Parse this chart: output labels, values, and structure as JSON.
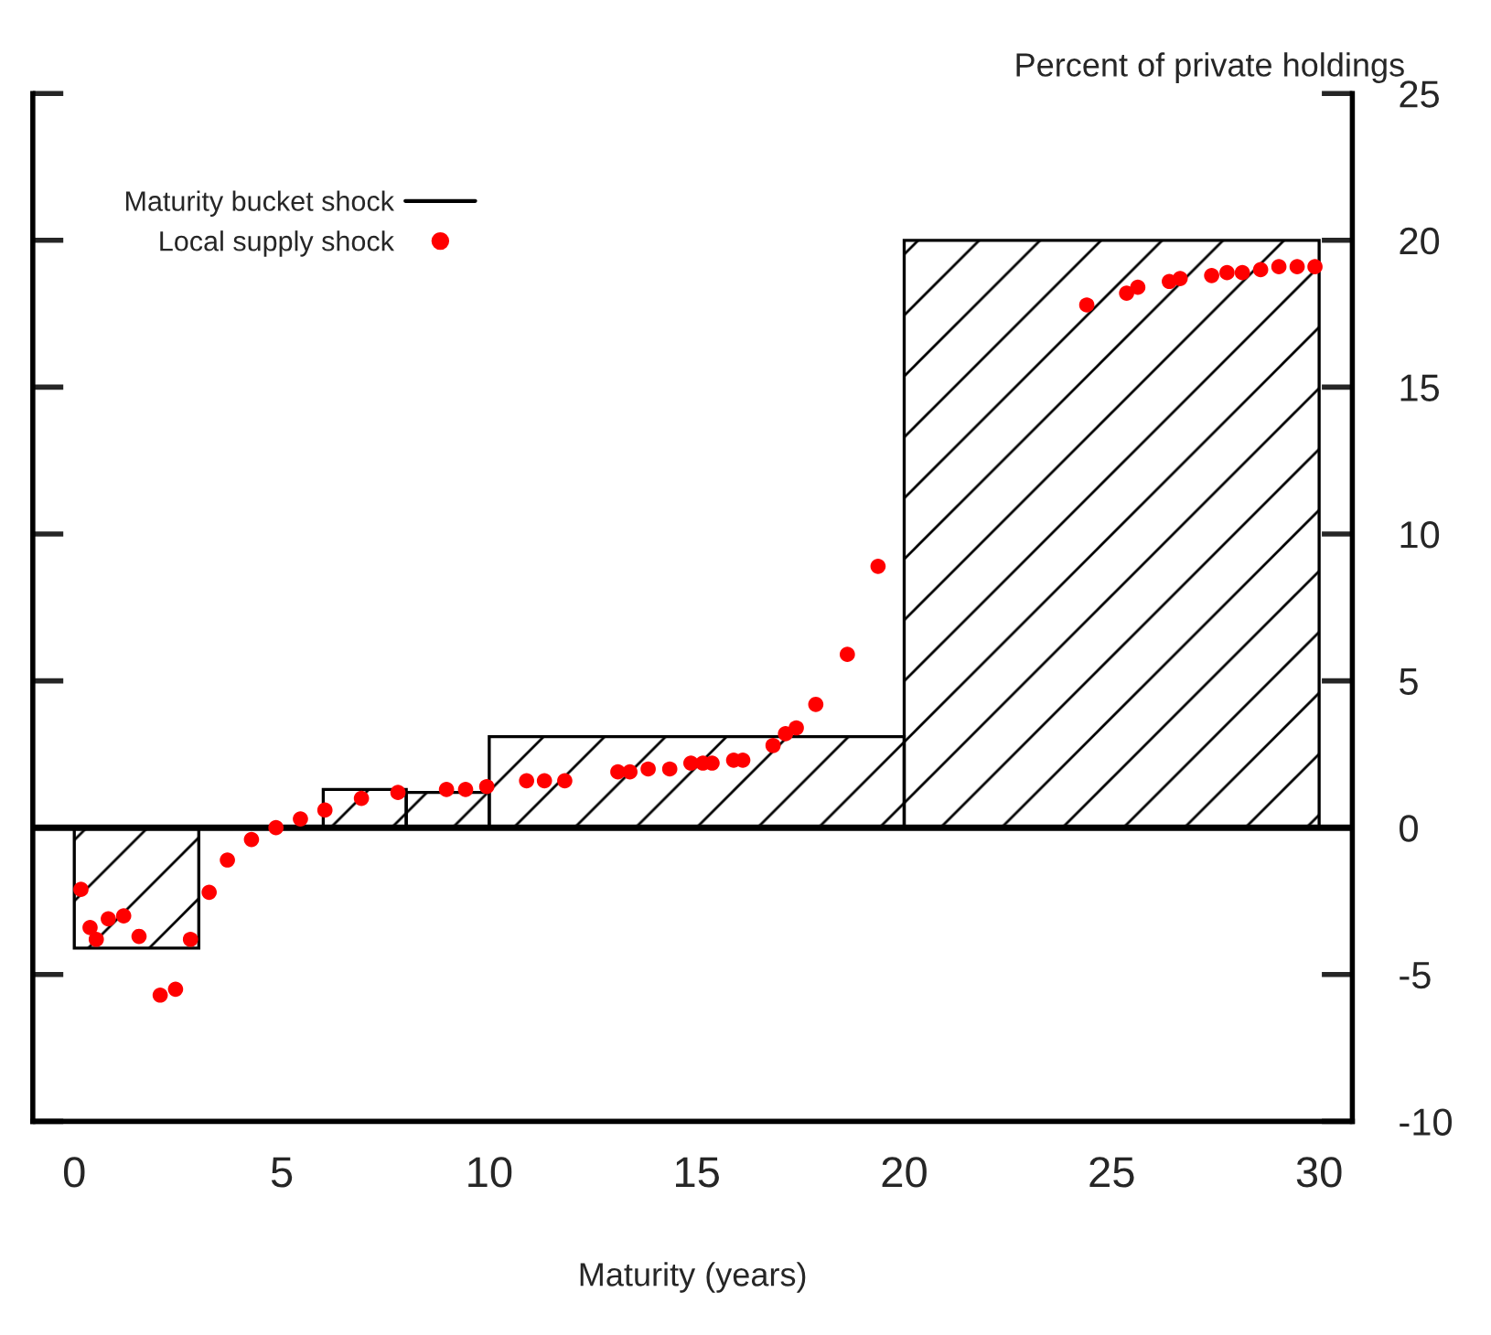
{
  "chart_data": {
    "type": "histogram",
    "xlabel": "Maturity (years)",
    "ylabel": "Percent of private holdings",
    "xlim": [
      -1,
      30.8
    ],
    "xticks": [
      0,
      5,
      10,
      15,
      20,
      25,
      30
    ],
    "ylim": [
      -10,
      25
    ],
    "yticks": [
      -10,
      -5,
      0,
      5,
      10,
      15,
      20,
      25
    ],
    "grid": false,
    "legend": "top left",
    "ref_lines": [
      {
        "axis": "y",
        "value": 0,
        "color": "#000000"
      }
    ],
    "series": [
      {
        "name": "Maturity bucket shock",
        "color": "#000000",
        "bins": [
          0,
          3,
          6,
          8,
          10,
          20,
          30
        ],
        "values": [
          -4.1,
          0,
          1.3,
          1.2,
          3.1,
          20
        ]
      },
      {
        "name": "Local supply shock",
        "type": "scatter",
        "color": "#ff0000",
        "marker": "circle",
        "x": [
          0.16,
          0.38,
          0.53,
          0.82,
          1.19,
          1.56,
          2.07,
          2.44,
          2.8,
          3.25,
          3.69,
          4.27,
          4.86,
          5.45,
          6.04,
          6.92,
          7.8,
          8.97,
          9.43,
          9.94,
          10.9,
          11.33,
          11.82,
          13.1,
          13.39,
          13.83,
          14.35,
          14.86,
          15.15,
          15.37,
          15.89,
          16.11,
          16.84,
          17.14,
          17.4,
          17.87,
          18.63,
          19.37,
          24.4,
          25.36,
          25.63,
          26.39,
          26.65,
          27.41,
          27.78,
          28.15,
          28.59,
          29.03,
          29.47,
          29.9
        ],
        "values": [
          -2.1,
          -3.4,
          -3.8,
          -3.1,
          -3.0,
          -3.7,
          -5.7,
          -5.5,
          -3.8,
          -2.2,
          -1.1,
          -0.4,
          0.0,
          0.3,
          0.6,
          1.0,
          1.2,
          1.3,
          1.3,
          1.4,
          1.6,
          1.6,
          1.6,
          1.9,
          1.9,
          2.0,
          2.0,
          2.2,
          2.2,
          2.2,
          2.3,
          2.3,
          2.8,
          3.2,
          3.4,
          4.2,
          5.9,
          8.9,
          17.8,
          18.2,
          18.4,
          18.6,
          18.7,
          18.8,
          18.9,
          18.9,
          19.0,
          19.1,
          19.1,
          19.1
        ]
      }
    ]
  }
}
